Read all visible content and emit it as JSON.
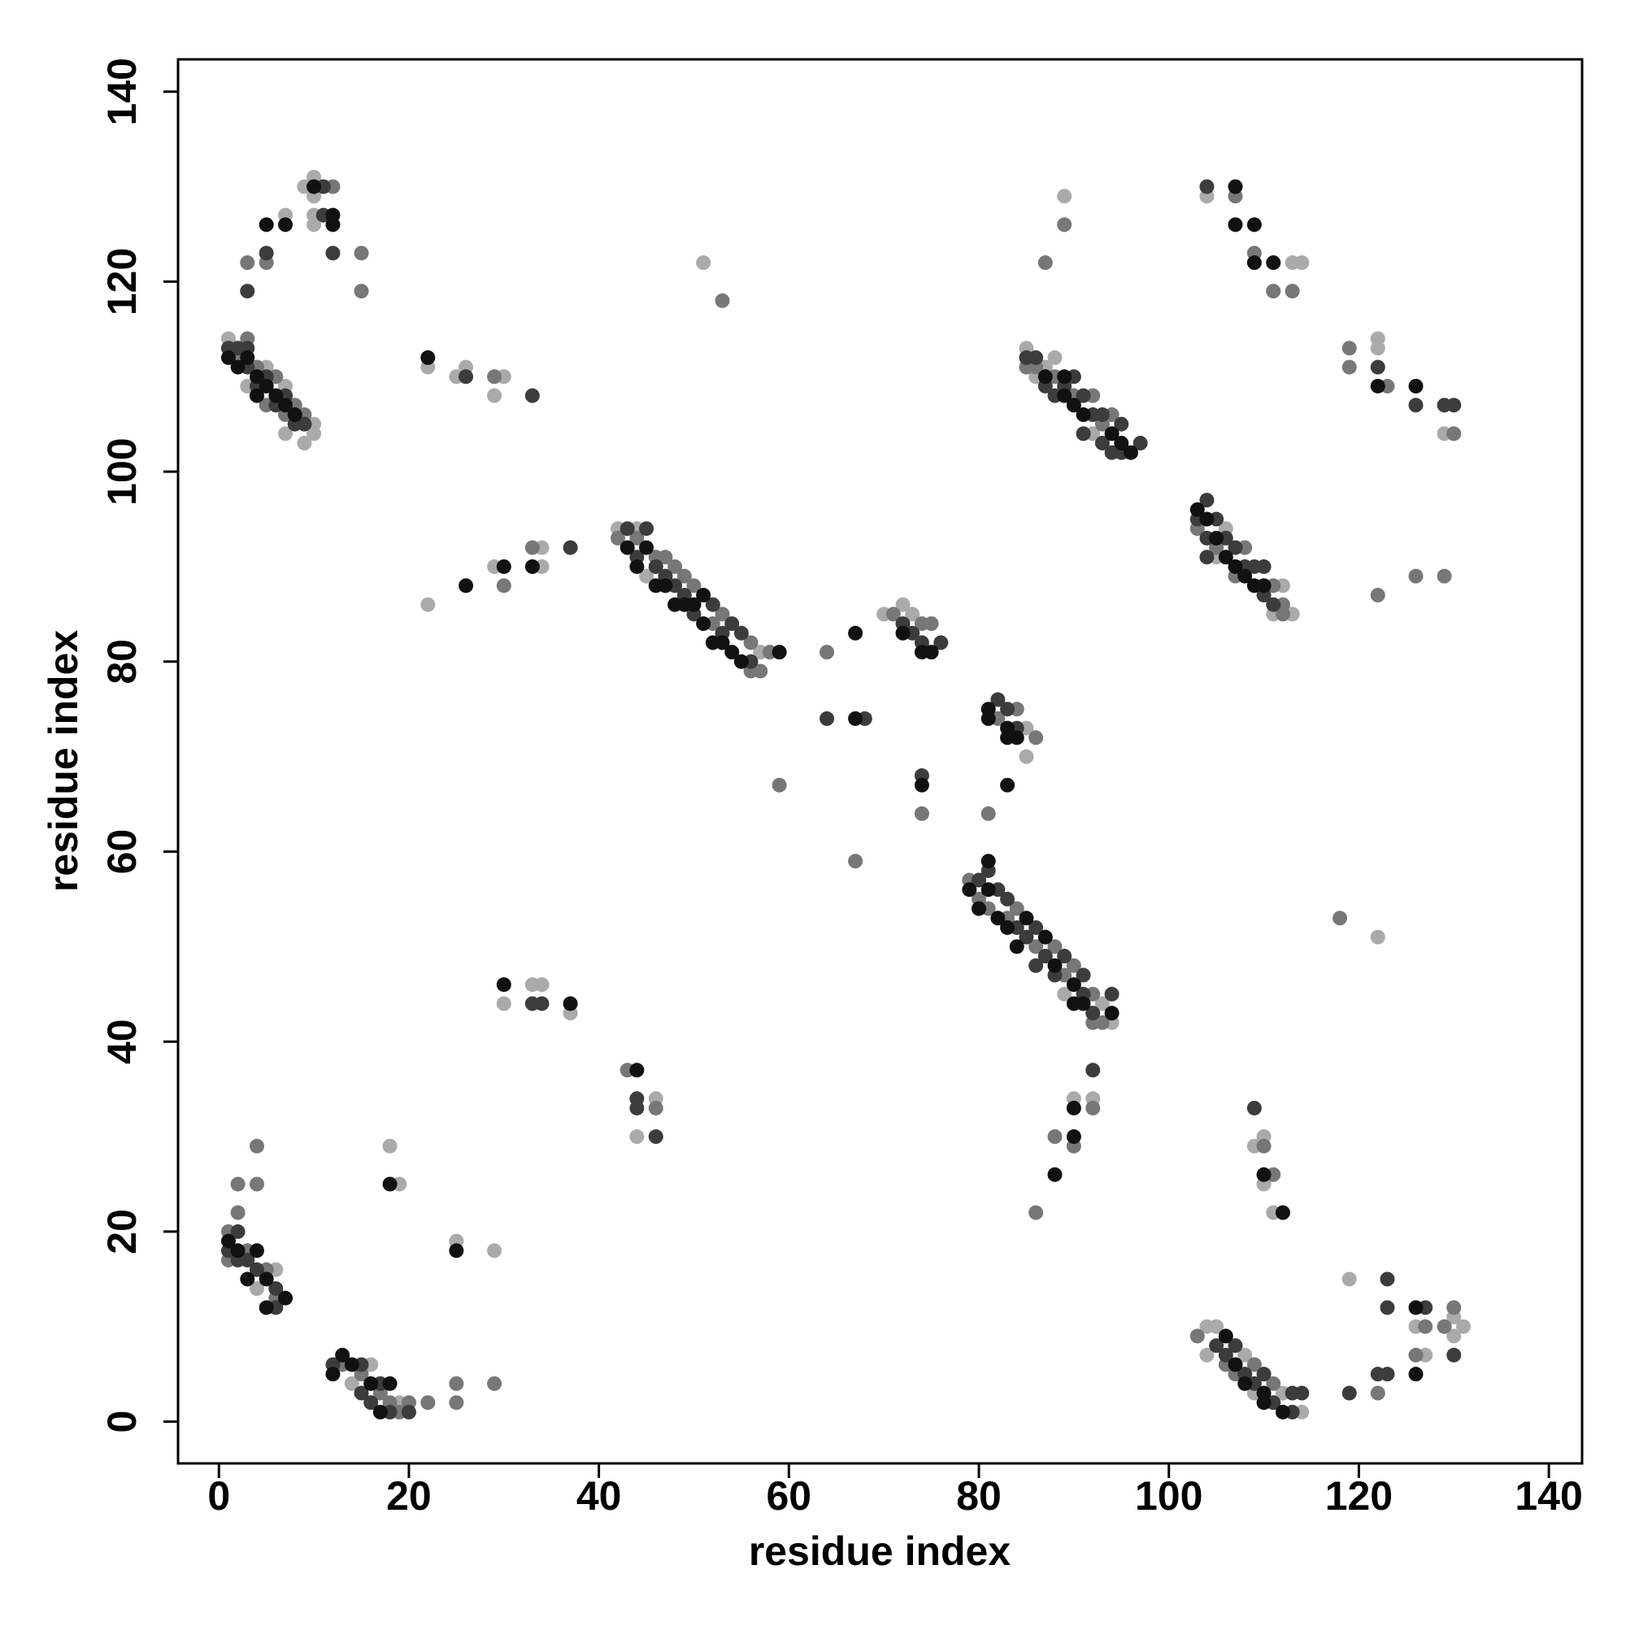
{
  "chart_data": {
    "type": "scatter",
    "x_label": "residue index",
    "y_label": "residue index",
    "xlim": [
      -4.3,
      143.5
    ],
    "ylim": [
      -4.4,
      143.4
    ],
    "xticks": [
      0,
      20,
      40,
      60,
      80,
      100,
      120,
      140
    ],
    "yticks": [
      0,
      20,
      40,
      60,
      80,
      100,
      120,
      140
    ],
    "grid": false,
    "series": [
      {
        "color": "#aaaaaa",
        "x": [
          7,
          9,
          10,
          10,
          10,
          10,
          1,
          3,
          5,
          7,
          7,
          9,
          10,
          10,
          22,
          25,
          26,
          29,
          30,
          51,
          22,
          29,
          34,
          34,
          42,
          44,
          45,
          57,
          70,
          72,
          73,
          85,
          85,
          89,
          93,
          94,
          90,
          92,
          85,
          86,
          87,
          88,
          92,
          89,
          105,
          106,
          111,
          112,
          113,
          104,
          113,
          114,
          122,
          122,
          129,
          122,
          104,
          104,
          105,
          108,
          109,
          112,
          114,
          109,
          110,
          110,
          111,
          119,
          126,
          127,
          130,
          130,
          131,
          4,
          6,
          14,
          16,
          19,
          18,
          19,
          25,
          29,
          30,
          33,
          34,
          37,
          44,
          46
        ],
        "y": [
          127,
          130,
          131,
          129,
          127,
          126,
          114,
          109,
          111,
          109,
          104,
          103,
          105,
          104,
          111,
          110,
          111,
          108,
          110,
          122,
          86,
          90,
          92,
          90,
          94,
          94,
          89,
          81,
          85,
          86,
          85,
          73,
          70,
          45,
          44,
          42,
          34,
          34,
          113,
          110,
          111,
          112,
          104,
          129,
          91,
          94,
          85,
          88,
          85,
          129,
          122,
          122,
          114,
          113,
          104,
          51,
          10,
          7,
          10,
          7,
          3,
          3,
          1,
          29,
          30,
          25,
          22,
          15,
          10,
          7,
          11,
          9,
          10,
          14,
          16,
          4,
          6,
          2,
          29,
          25,
          19,
          18,
          44,
          46,
          46,
          43,
          30,
          34
        ]
      },
      {
        "color": "#777777",
        "x": [
          3,
          5,
          12,
          15,
          15,
          2,
          3,
          4,
          5,
          6,
          7,
          8,
          9,
          29,
          53,
          30,
          33,
          42,
          44,
          46,
          47,
          48,
          49,
          50,
          52,
          53,
          56,
          56,
          57,
          58,
          64,
          59,
          67,
          71,
          74,
          75,
          74,
          82,
          84,
          86,
          81,
          79,
          80,
          81,
          83,
          84,
          86,
          88,
          89,
          90,
          92,
          92,
          93,
          86,
          88,
          90,
          92,
          85,
          86,
          88,
          90,
          92,
          93,
          94,
          87,
          89,
          103,
          105,
          107,
          108,
          111,
          112,
          112,
          107,
          109,
          111,
          113,
          119,
          119,
          123,
          130,
          122,
          126,
          129,
          118,
          103,
          106,
          107,
          109,
          111,
          110,
          111,
          122,
          126,
          127,
          129,
          130,
          1,
          1,
          3,
          5,
          6,
          2,
          2,
          4,
          4,
          13,
          15,
          17,
          18,
          19,
          20,
          22,
          25,
          25,
          29,
          43,
          46
        ],
        "y": [
          122,
          122,
          130,
          123,
          119,
          112,
          114,
          111,
          107,
          110,
          106,
          107,
          106,
          110,
          118,
          88,
          92,
          93,
          93,
          91,
          91,
          90,
          89,
          88,
          84,
          85,
          82,
          79,
          79,
          81,
          81,
          67,
          59,
          85,
          84,
          84,
          64,
          74,
          75,
          72,
          64,
          57,
          55,
          54,
          53,
          54,
          50,
          50,
          47,
          48,
          45,
          42,
          42,
          22,
          30,
          29,
          33,
          111,
          111,
          110,
          108,
          108,
          105,
          106,
          122,
          126,
          94,
          92,
          89,
          92,
          88,
          86,
          85,
          129,
          123,
          119,
          119,
          113,
          111,
          109,
          104,
          87,
          89,
          89,
          53,
          9,
          6,
          5,
          6,
          4,
          29,
          26,
          3,
          7,
          10,
          10,
          12,
          20,
          17,
          18,
          16,
          13,
          25,
          22,
          29,
          25,
          6,
          5,
          3,
          2,
          1,
          2,
          2,
          4,
          2,
          4,
          37,
          33
        ]
      },
      {
        "color": "#3c3c3c",
        "x": [
          3,
          5,
          11,
          11,
          12,
          1,
          2,
          3,
          3,
          4,
          5,
          6,
          7,
          8,
          9,
          26,
          33,
          37,
          43,
          44,
          45,
          46,
          47,
          48,
          49,
          50,
          52,
          53,
          54,
          55,
          56,
          64,
          68,
          72,
          73,
          74,
          76,
          74,
          82,
          83,
          84,
          80,
          81,
          82,
          83,
          84,
          85,
          86,
          86,
          87,
          88,
          89,
          91,
          91,
          92,
          94,
          92,
          85,
          86,
          87,
          88,
          89,
          90,
          91,
          91,
          92,
          93,
          93,
          94,
          95,
          95,
          97,
          103,
          104,
          104,
          104,
          105,
          106,
          107,
          108,
          109,
          110,
          110,
          111,
          104,
          122,
          126,
          129,
          130,
          105,
          106,
          107,
          108,
          109,
          110,
          111,
          113,
          113,
          114,
          109,
          119,
          122,
          123,
          123,
          123,
          127,
          130,
          1,
          2,
          2,
          3,
          4,
          6,
          6,
          12,
          15,
          15,
          16,
          17,
          18,
          20,
          33,
          34,
          44,
          44,
          46
        ],
        "y": [
          119,
          123,
          130,
          127,
          123,
          113,
          113,
          113,
          111,
          109,
          110,
          107,
          108,
          105,
          105,
          110,
          108,
          92,
          94,
          91,
          94,
          90,
          89,
          88,
          87,
          85,
          86,
          83,
          84,
          83,
          80,
          74,
          74,
          84,
          83,
          82,
          82,
          68,
          76,
          75,
          73,
          57,
          58,
          56,
          55,
          52,
          51,
          52,
          48,
          49,
          47,
          49,
          47,
          45,
          43,
          45,
          37,
          112,
          112,
          109,
          108,
          109,
          110,
          108,
          104,
          106,
          106,
          103,
          102,
          105,
          102,
          103,
          95,
          97,
          93,
          91,
          95,
          93,
          92,
          90,
          90,
          90,
          87,
          86,
          130,
          111,
          107,
          107,
          107,
          8,
          7,
          8,
          5,
          4,
          5,
          2,
          3,
          1,
          3,
          33,
          3,
          5,
          15,
          12,
          5,
          12,
          7,
          18,
          20,
          17,
          17,
          16,
          14,
          12,
          6,
          6,
          3,
          2,
          4,
          1,
          1,
          44,
          44,
          34,
          33,
          30
        ]
      },
      {
        "color": "#111111",
        "x": [
          12,
          12,
          5,
          7,
          10,
          1,
          2,
          3,
          4,
          4,
          5,
          6,
          7,
          8,
          22,
          26,
          30,
          33,
          43,
          44,
          45,
          46,
          47,
          48,
          49,
          50,
          51,
          51,
          52,
          53,
          54,
          55,
          59,
          67,
          67,
          72,
          74,
          75,
          74,
          81,
          81,
          83,
          83,
          84,
          83,
          79,
          80,
          81,
          81,
          82,
          83,
          84,
          85,
          87,
          88,
          90,
          90,
          91,
          94,
          88,
          90,
          90,
          87,
          89,
          89,
          90,
          91,
          94,
          95,
          96,
          103,
          104,
          105,
          106,
          107,
          108,
          109,
          110,
          107,
          107,
          109,
          109,
          111,
          122,
          126,
          106,
          107,
          108,
          110,
          110,
          112,
          110,
          112,
          126,
          126,
          1,
          2,
          3,
          4,
          5,
          5,
          7,
          12,
          13,
          14,
          16,
          17,
          18,
          18,
          25,
          30,
          37,
          44
        ],
        "y": [
          126,
          127,
          126,
          126,
          130,
          112,
          111,
          112,
          110,
          108,
          109,
          108,
          107,
          106,
          112,
          88,
          90,
          90,
          92,
          90,
          92,
          88,
          88,
          86,
          86,
          86,
          87,
          84,
          82,
          82,
          81,
          80,
          81,
          83,
          74,
          83,
          81,
          81,
          67,
          75,
          74,
          73,
          72,
          72,
          67,
          56,
          54,
          59,
          56,
          53,
          52,
          50,
          53,
          51,
          48,
          46,
          44,
          44,
          43,
          26,
          33,
          30,
          110,
          110,
          108,
          107,
          106,
          104,
          103,
          102,
          96,
          95,
          93,
          91,
          90,
          89,
          88,
          88,
          130,
          126,
          126,
          122,
          122,
          109,
          109,
          9,
          6,
          4,
          3,
          2,
          1,
          26,
          22,
          12,
          5,
          19,
          18,
          15,
          18,
          15,
          12,
          13,
          5,
          7,
          6,
          4,
          1,
          4,
          25,
          18,
          46,
          44,
          37
        ]
      }
    ]
  }
}
